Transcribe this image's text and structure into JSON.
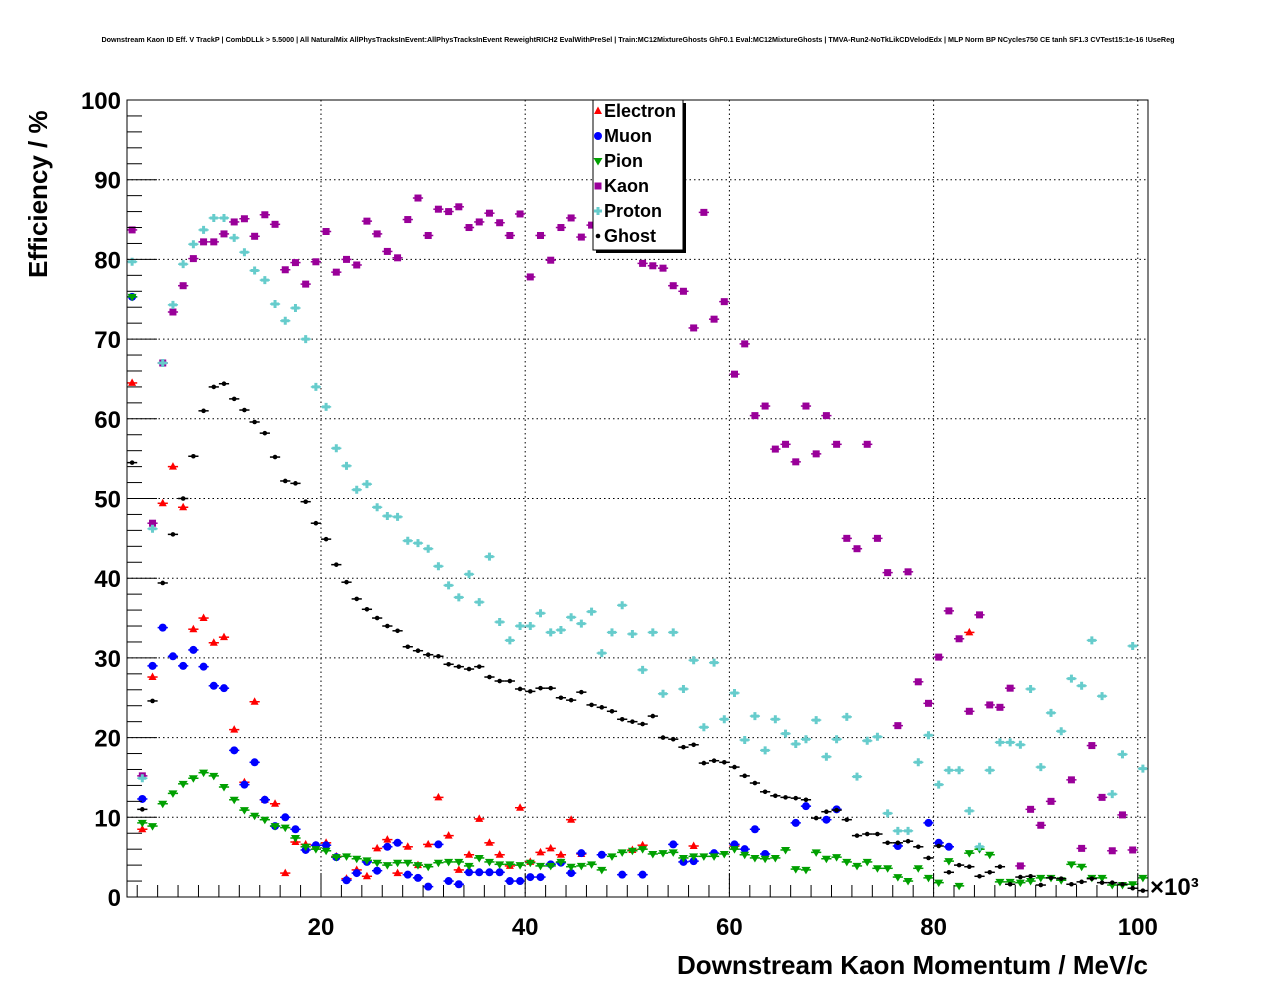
{
  "chart_data": {
    "type": "scatter",
    "title": "Downstream Kaon ID Eff. V TrackP | CombDLLk > 5.5000 | All NaturalMix AllPhysTracksInEvent:AllPhysTracksInEvent ReweightRICH2 EvalWithPreSel | Train:MC12MixtureGhosts GhF0.1 Eval:MC12MixtureGhosts | TMVA-Run2-NoTkLikCDVelodEdx | MLP Norm BP NCycles750 CE tanh SF1.3 CVTest15:1e-16 !UseReg",
    "xlabel": "Downstream Kaon Momentum / MeV/c",
    "ylabel": "Efficiency / %",
    "x_multiplier": "×10³",
    "xlim": [
      1,
      101
    ],
    "ylim": [
      0,
      100
    ],
    "xticks": [
      "20",
      "40",
      "60",
      "80",
      "100"
    ],
    "yticks": [
      "0",
      "10",
      "20",
      "30",
      "40",
      "50",
      "60",
      "70",
      "80",
      "90",
      "100"
    ],
    "grid": true,
    "legend_position": "top-center",
    "x_start": 1.5,
    "x_step": 1,
    "series": [
      {
        "name": "Electron",
        "color": "#ff0000",
        "marker": "triangle-up",
        "values": [
          64.5,
          8.5,
          27.6,
          49.4,
          54,
          48.9,
          33.6,
          35,
          31.9,
          32.6,
          21,
          14.4,
          24.5,
          12.2,
          11.7,
          3,
          6.9,
          6.6,
          6.5,
          6.8,
          5.1,
          2.3,
          3.4,
          2.6,
          6.1,
          7.2,
          3,
          6.3,
          4,
          6.6,
          12.5,
          7.7,
          3.4,
          5.3,
          9.8,
          6.8,
          5.3,
          3.9,
          11.2,
          4.4,
          5.6,
          6.1,
          5.3,
          9.7,
          5.4,
          null,
          null,
          null,
          null,
          5.9,
          6.5,
          null,
          null,
          null,
          null,
          6.4,
          null,
          null,
          null,
          6.4,
          null,
          null,
          null,
          null,
          null,
          null,
          null,
          null,
          null,
          null,
          null,
          null,
          null,
          null,
          null,
          null,
          null,
          null,
          null,
          null,
          null,
          null,
          33.2,
          null,
          null,
          null,
          null,
          null,
          null,
          null,
          null,
          null,
          null,
          null,
          null,
          null,
          null,
          null,
          null,
          null
        ]
      },
      {
        "name": "Muon",
        "color": "#0000ff",
        "marker": "circle",
        "values": [
          75.3,
          12.3,
          29,
          33.8,
          30.2,
          29,
          31,
          28.9,
          26.5,
          26.2,
          18.4,
          14.1,
          16.9,
          12.2,
          8.9,
          10,
          8.5,
          5.9,
          6.5,
          6.5,
          5,
          2.1,
          3,
          4.4,
          3.3,
          6.3,
          6.8,
          2.8,
          2.4,
          1.3,
          6.6,
          2,
          1.6,
          3.1,
          3.1,
          3.1,
          3.1,
          2,
          2,
          2.5,
          2.5,
          4.1,
          4.3,
          3,
          5.5,
          null,
          5.3,
          null,
          2.8,
          null,
          2.8,
          null,
          null,
          6.6,
          4.4,
          4.5,
          null,
          5.5,
          null,
          6.6,
          6,
          8.5,
          5.4,
          null,
          null,
          9.3,
          11.4,
          null,
          9.7,
          11,
          null,
          null,
          null,
          null,
          null,
          6.4,
          null,
          null,
          9.3,
          6.8,
          6.3,
          null,
          null,
          null,
          null,
          null,
          null,
          null,
          null,
          null,
          null,
          null,
          null,
          null,
          null,
          null,
          null,
          null,
          null,
          null
        ]
      },
      {
        "name": "Pion",
        "color": "#00a000",
        "marker": "triangle-down",
        "values": [
          75.3,
          9.3,
          8.9,
          11.7,
          13,
          14.2,
          14.9,
          15.6,
          15.2,
          13.8,
          12.2,
          10.9,
          10.2,
          9.7,
          8.9,
          8.7,
          7.4,
          6.3,
          6,
          5.8,
          5,
          5.1,
          4.8,
          4.6,
          4.3,
          4,
          4.3,
          4.3,
          4,
          3.8,
          4.3,
          4.4,
          4.4,
          3.9,
          4.9,
          4.4,
          4.1,
          4.1,
          4,
          4.3,
          3.9,
          3.9,
          4.4,
          3.8,
          3.9,
          4.1,
          3.4,
          5.1,
          5.6,
          5.8,
          6,
          5.4,
          5.5,
          5.6,
          4.9,
          5.1,
          5.1,
          5.1,
          5.4,
          6,
          5.3,
          4.9,
          4.8,
          4.9,
          5.9,
          3.5,
          3.4,
          5.6,
          4.8,
          5,
          4.4,
          3.9,
          4.4,
          3.6,
          3.6,
          2.5,
          2,
          3.6,
          2.4,
          1.8,
          4.5,
          1.4,
          5.5,
          6,
          5.3,
          1.9,
          1.9,
          1.8,
          2,
          2.4,
          2.4,
          2.1,
          4.1,
          3.8,
          2.4,
          2.4,
          1.5,
          1.5,
          1.6,
          2.4
        ]
      },
      {
        "name": "Kaon",
        "color": "#990099",
        "marker": "square",
        "values": [
          83.7,
          15.2,
          46.9,
          67,
          73.4,
          76.7,
          80.1,
          82.2,
          82.2,
          83.2,
          84.7,
          85.1,
          82.9,
          85.6,
          84.4,
          78.7,
          79.6,
          76.9,
          79.7,
          83.5,
          78.4,
          80,
          79.3,
          84.8,
          83.2,
          81,
          80.2,
          85,
          87.7,
          83,
          86.3,
          86,
          86.6,
          84,
          84.7,
          85.8,
          84.6,
          83,
          85.7,
          77.8,
          83,
          79.9,
          84,
          85.2,
          82.8,
          84.3,
          null,
          null,
          null,
          null,
          79.5,
          79.2,
          78.9,
          76.7,
          76,
          71.4,
          85.9,
          72.5,
          74.7,
          65.6,
          69.4,
          60.4,
          61.6,
          56.2,
          56.8,
          54.6,
          61.6,
          55.6,
          60.4,
          56.8,
          45,
          43.7,
          56.8,
          45,
          40.7,
          21.5,
          40.8,
          27,
          24.3,
          30.1,
          35.9,
          32.4,
          23.3,
          35.4,
          24.1,
          23.8,
          26.2,
          3.9,
          11,
          9,
          12,
          null,
          14.7,
          6.1,
          19,
          12.5,
          5.8,
          10.3,
          5.9,
          null
        ]
      },
      {
        "name": "Proton",
        "color": "#66cccc",
        "marker": "cross",
        "values": [
          79.7,
          14.9,
          46.2,
          67,
          74.3,
          79.4,
          81.9,
          83.7,
          85.2,
          85.2,
          82.7,
          80.9,
          78.6,
          77.4,
          74.4,
          72.3,
          73.9,
          70,
          64,
          61.5,
          56.3,
          54.1,
          51.1,
          51.8,
          48.9,
          47.8,
          47.7,
          44.7,
          44.4,
          43.7,
          41.5,
          39.1,
          37.6,
          40.5,
          37,
          42.7,
          34.5,
          32.2,
          34,
          34,
          35.6,
          33.2,
          33.5,
          35.1,
          34.3,
          35.8,
          30.6,
          33.2,
          36.6,
          33,
          28.5,
          33.2,
          25.5,
          33.2,
          26.1,
          29.7,
          21.3,
          29.4,
          22.3,
          25.6,
          19.7,
          22.7,
          18.4,
          22.3,
          20.5,
          19.2,
          19.8,
          22.2,
          17.6,
          19.8,
          22.6,
          15.1,
          19.6,
          20.1,
          10.5,
          8.3,
          8.3,
          16.9,
          20.3,
          14.1,
          15.9,
          15.9,
          10.8,
          6.3,
          15.9,
          19.4,
          19.4,
          19.1,
          26.1,
          16.3,
          23.1,
          20.8,
          27.4,
          26.5,
          32.2,
          25.2,
          12.9,
          17.9,
          31.5,
          16.1
        ]
      },
      {
        "name": "Ghost",
        "color": "#000000",
        "marker": "dot",
        "values": [
          54.5,
          11,
          24.6,
          39.4,
          45.5,
          50,
          55.3,
          61,
          64,
          64.4,
          62.5,
          61.1,
          59.6,
          58.2,
          55.2,
          52.2,
          51.9,
          49.6,
          46.9,
          44.9,
          41.7,
          39.5,
          37.4,
          36.1,
          35,
          34,
          33.4,
          31.4,
          30.9,
          30.4,
          30.2,
          29.2,
          28.9,
          28.6,
          28.9,
          27.6,
          27.1,
          27.1,
          26.1,
          25.8,
          26.2,
          26.2,
          25,
          24.7,
          25.7,
          24.1,
          23.8,
          23.3,
          22.3,
          22,
          21.7,
          22.7,
          20,
          19.8,
          18.8,
          19.1,
          16.8,
          17.1,
          16.9,
          16.3,
          15.2,
          14.3,
          13.2,
          12.7,
          12.5,
          12.4,
          12.2,
          9.9,
          10.7,
          10.9,
          9.7,
          7.7,
          7.9,
          7.9,
          6.8,
          6.8,
          7,
          6.3,
          4.9,
          6.4,
          3.1,
          4,
          3.8,
          2.6,
          3.1,
          3.8,
          1.6,
          2.5,
          2.6,
          1.5,
          2.4,
          2.3,
          1.6,
          1.9,
          2.3,
          1.8,
          1.8,
          1.6,
          1.1,
          0.8
        ]
      }
    ]
  }
}
